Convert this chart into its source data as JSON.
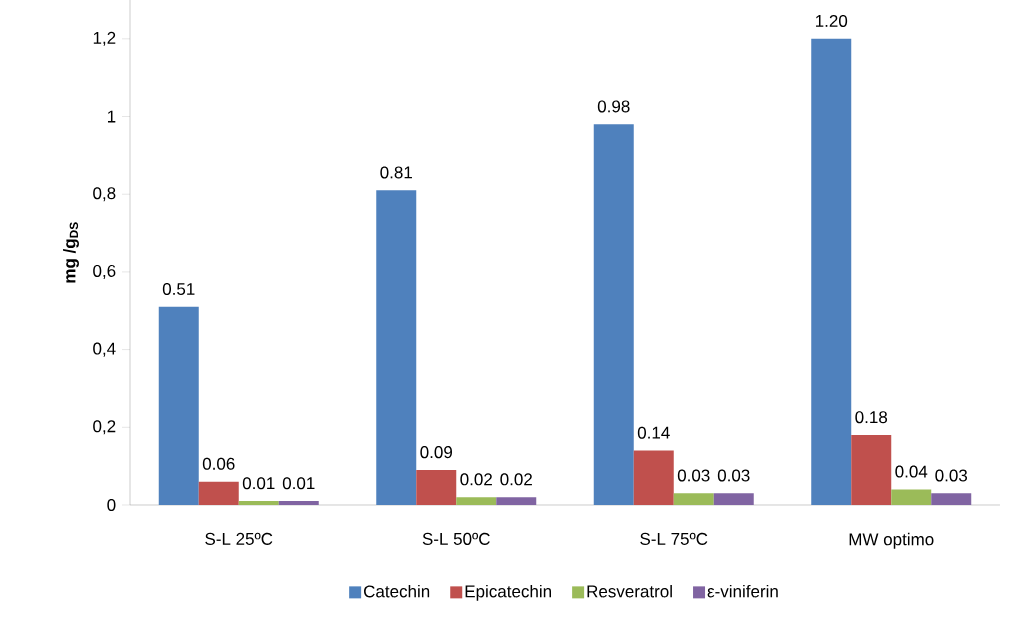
{
  "chart_data": {
    "type": "bar",
    "ylabel": "mg /g$_{DS}$",
    "categories": [
      "S-L 25ºC",
      "S-L 50ºC",
      "S-L 75ºC",
      "MW optimo"
    ],
    "series": [
      {
        "name": "Catechin",
        "color": "#4f81bd",
        "values": [
          0.51,
          0.81,
          0.98,
          1.2
        ],
        "value_labels": [
          "0.51",
          "0.81",
          "0.98",
          "1.20"
        ]
      },
      {
        "name": "Epicatechin",
        "color": "#c0504d",
        "values": [
          0.06,
          0.09,
          0.14,
          0.18
        ],
        "value_labels": [
          "0.06",
          "0.09",
          "0.14",
          "0.18"
        ]
      },
      {
        "name": "Resveratrol",
        "color": "#9bbb59",
        "values": [
          0.01,
          0.02,
          0.03,
          0.04
        ],
        "value_labels": [
          "0.01",
          "0.02",
          "0.03",
          "0.04"
        ]
      },
      {
        "name": "ε-viniferin",
        "color": "#8064a2",
        "values": [
          0.01,
          0.02,
          0.03,
          0.03
        ],
        "value_labels": [
          "0.01",
          "0.02",
          "0.03",
          "0.03"
        ]
      }
    ],
    "ylim": [
      0,
      1.3
    ],
    "yticks": [
      0,
      {
        "value": 0.2,
        "label": "0,2"
      },
      {
        "value": 0.4,
        "label": "0,4"
      },
      {
        "value": 0.6,
        "label": "0,6"
      },
      {
        "value": 0.8,
        "label": "0,8"
      },
      1,
      {
        "value": 1.2,
        "label": "1,2"
      }
    ],
    "legend": "bottom",
    "grid": false
  }
}
